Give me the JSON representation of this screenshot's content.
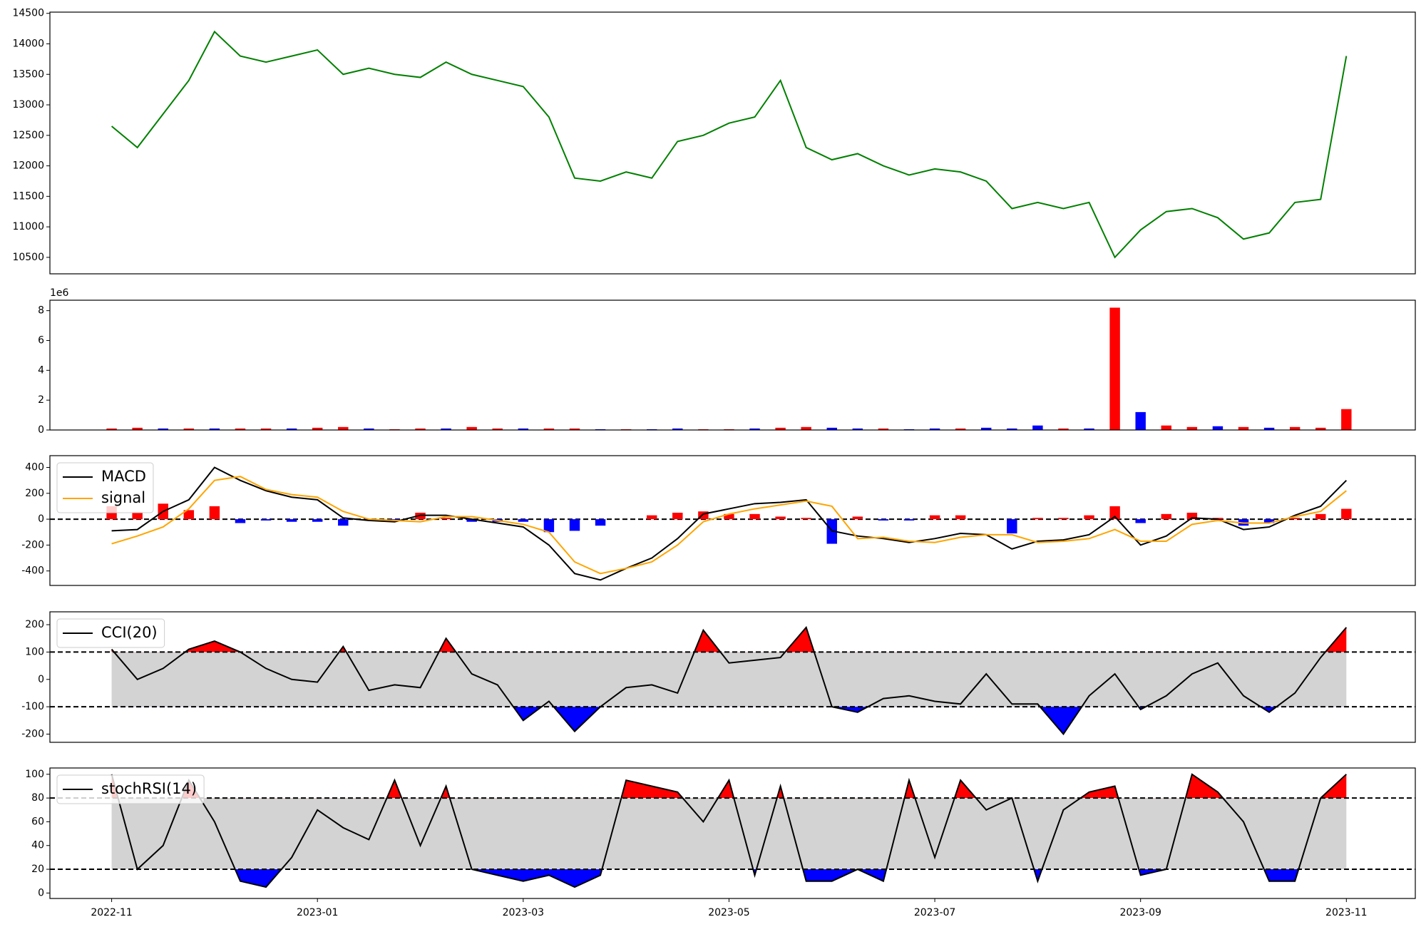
{
  "chart_data": [
    {
      "type": "line",
      "xlim": [
        -0.6,
        12.67
      ],
      "ylim": [
        10230,
        14520
      ],
      "yticks": [
        10500,
        11000,
        11500,
        12000,
        12500,
        13000,
        13500,
        14000,
        14500
      ],
      "x": [
        0,
        0.25,
        0.5,
        0.75,
        1,
        1.25,
        1.5,
        1.75,
        2,
        2.25,
        2.5,
        2.75,
        3,
        3.25,
        3.5,
        3.75,
        4,
        4.25,
        4.5,
        4.75,
        5,
        5.25,
        5.5,
        5.75,
        6,
        6.25,
        6.5,
        6.75,
        7,
        7.25,
        7.5,
        7.75,
        8,
        8.25,
        8.5,
        8.75,
        9,
        9.25,
        9.5,
        9.75,
        10,
        10.25,
        10.5,
        10.75,
        11,
        11.25,
        11.5,
        11.75,
        12
      ],
      "series": [
        {
          "color": "green",
          "values": [
            12650,
            12300,
            12850,
            13400,
            14200,
            13800,
            13700,
            13800,
            13900,
            13500,
            13600,
            13500,
            13450,
            13700,
            13500,
            13400,
            13300,
            12800,
            11800,
            11750,
            11900,
            11800,
            12400,
            12500,
            12700,
            12800,
            13400,
            12300,
            12100,
            12200,
            12000,
            11850,
            11950,
            11900,
            11750,
            11300,
            11400,
            11300,
            11400,
            10500,
            10950,
            11250,
            11300,
            11150,
            10800,
            10900,
            11400,
            11450,
            13800
          ]
        }
      ]
    },
    {
      "type": "bar",
      "xlim": [
        -0.6,
        12.67
      ],
      "ylim": [
        0,
        8.7
      ],
      "yticks": [
        0,
        2,
        4,
        6,
        8
      ],
      "offset_label": "1e6",
      "x": [
        0,
        0.25,
        0.5,
        0.75,
        1,
        1.25,
        1.5,
        1.75,
        2,
        2.25,
        2.5,
        2.75,
        3,
        3.25,
        3.5,
        3.75,
        4,
        4.25,
        4.5,
        4.75,
        5,
        5.25,
        5.5,
        5.75,
        6,
        6.25,
        6.5,
        6.75,
        7,
        7.25,
        7.5,
        7.75,
        8,
        8.25,
        8.5,
        8.75,
        9,
        9.25,
        9.5,
        9.75,
        10,
        10.25,
        10.5,
        10.75,
        11,
        11.25,
        11.5,
        11.75,
        12
      ],
      "values": [
        0.1,
        0.15,
        0.1,
        0.1,
        0.1,
        0.1,
        0.1,
        0.1,
        0.15,
        0.2,
        0.1,
        0.05,
        0.1,
        0.1,
        0.2,
        0.1,
        0.1,
        0.1,
        0.1,
        0.05,
        0.05,
        0.05,
        0.1,
        0.05,
        0.05,
        0.1,
        0.15,
        0.2,
        0.15,
        0.1,
        0.1,
        0.05,
        0.1,
        0.1,
        0.15,
        0.1,
        0.3,
        0.1,
        0.1,
        8.2,
        1.2,
        0.3,
        0.2,
        0.25,
        0.2,
        0.15,
        0.2,
        0.15,
        1.4
      ],
      "colors": [
        "red",
        "red",
        "blue",
        "red",
        "blue",
        "red",
        "red",
        "blue",
        "red",
        "red",
        "blue",
        "red",
        "red",
        "blue",
        "red",
        "red",
        "blue",
        "red",
        "red",
        "blue",
        "red",
        "blue",
        "blue",
        "red",
        "red",
        "blue",
        "red",
        "red",
        "blue",
        "blue",
        "red",
        "blue",
        "blue",
        "red",
        "blue",
        "blue",
        "blue",
        "red",
        "blue",
        "red",
        "blue",
        "red",
        "red",
        "blue",
        "red",
        "blue",
        "red",
        "red",
        "red"
      ]
    },
    {
      "type": "line",
      "xlim": [
        -0.6,
        12.67
      ],
      "ylim": [
        -512,
        491
      ],
      "yticks": [
        -400,
        -200,
        0,
        200,
        400
      ],
      "hlines": [
        0
      ],
      "legend": "upper left",
      "x": [
        0,
        0.25,
        0.5,
        0.75,
        1,
        1.25,
        1.5,
        1.75,
        2,
        2.25,
        2.5,
        2.75,
        3,
        3.25,
        3.5,
        3.75,
        4,
        4.25,
        4.5,
        4.75,
        5,
        5.25,
        5.5,
        5.75,
        6,
        6.25,
        6.5,
        6.75,
        7,
        7.25,
        7.5,
        7.75,
        8,
        8.25,
        8.5,
        8.75,
        9,
        9.25,
        9.5,
        9.75,
        10,
        10.25,
        10.5,
        10.75,
        11,
        11.25,
        11.5,
        11.75,
        12
      ],
      "series": [
        {
          "name": "MACD",
          "color": "black",
          "values": [
            -90,
            -80,
            60,
            150,
            400,
            300,
            220,
            170,
            150,
            10,
            -10,
            -20,
            30,
            30,
            0,
            -30,
            -60,
            -200,
            -420,
            -470,
            -380,
            -300,
            -150,
            40,
            80,
            120,
            130,
            150,
            -90,
            -130,
            -150,
            -180,
            -150,
            -110,
            -120,
            -230,
            -170,
            -160,
            -120,
            20,
            -200,
            -130,
            10,
            0,
            -80,
            -60,
            30,
            100,
            300
          ]
        },
        {
          "name": "signal",
          "color": "orange",
          "values": [
            -190,
            -130,
            -60,
            80,
            300,
            330,
            230,
            190,
            170,
            60,
            0,
            -10,
            -20,
            20,
            20,
            -10,
            -40,
            -100,
            -330,
            -420,
            -380,
            -330,
            -200,
            -20,
            40,
            80,
            110,
            140,
            100,
            -150,
            -140,
            -170,
            -180,
            -140,
            -120,
            -120,
            -180,
            -170,
            -150,
            -80,
            -170,
            -170,
            -40,
            -10,
            -30,
            -30,
            20,
            60,
            220
          ]
        }
      ],
      "bars": {
        "pos_color": "red",
        "neg_color": "blue",
        "values": [
          100,
          50,
          120,
          70,
          100,
          -30,
          -10,
          -20,
          -20,
          -50,
          -10,
          -10,
          50,
          10,
          -20,
          -20,
          -20,
          -100,
          -90,
          -50,
          0,
          30,
          50,
          60,
          40,
          40,
          20,
          10,
          -190,
          20,
          -10,
          -10,
          30,
          30,
          0,
          -110,
          10,
          10,
          30,
          100,
          -30,
          40,
          50,
          10,
          -50,
          -30,
          10,
          40,
          80
        ]
      }
    },
    {
      "type": "line",
      "xlim": [
        -0.6,
        12.67
      ],
      "ylim": [
        -230,
        247
      ],
      "yticks": [
        -200,
        -100,
        0,
        100,
        200
      ],
      "hlines": [
        -100,
        100
      ],
      "legend": "upper left",
      "band": [
        -100,
        100
      ],
      "band_color": "lightgray",
      "above_color": "red",
      "below_color": "blue",
      "x": [
        0,
        0.25,
        0.5,
        0.75,
        1,
        1.25,
        1.5,
        1.75,
        2,
        2.25,
        2.5,
        2.75,
        3,
        3.25,
        3.5,
        3.75,
        4,
        4.25,
        4.5,
        4.75,
        5,
        5.25,
        5.5,
        5.75,
        6,
        6.25,
        6.5,
        6.75,
        7,
        7.25,
        7.5,
        7.75,
        8,
        8.25,
        8.5,
        8.75,
        9,
        9.25,
        9.5,
        9.75,
        10,
        10.25,
        10.5,
        10.75,
        11,
        11.25,
        11.5,
        11.75,
        12
      ],
      "series": [
        {
          "name": "CCI(20)",
          "color": "black",
          "values": [
            110,
            0,
            40,
            110,
            140,
            100,
            40,
            0,
            -10,
            120,
            -40,
            -20,
            -30,
            150,
            20,
            -20,
            -150,
            -80,
            -190,
            -100,
            -30,
            -20,
            -50,
            180,
            60,
            70,
            80,
            190,
            -100,
            -120,
            -70,
            -60,
            -80,
            -90,
            20,
            -90,
            -90,
            -200,
            -60,
            20,
            -110,
            -60,
            20,
            60,
            -60,
            -120,
            -50,
            80,
            190
          ]
        }
      ]
    },
    {
      "type": "line",
      "xlim": [
        -0.6,
        12.67
      ],
      "ylim": [
        -4.6,
        105.3
      ],
      "yticks": [
        0,
        20,
        40,
        60,
        80,
        100
      ],
      "hlines": [
        20,
        80
      ],
      "legend": "upper left",
      "band": [
        20,
        80
      ],
      "band_color": "lightgray",
      "above_color": "red",
      "below_color": "blue",
      "x": [
        0,
        0.25,
        0.5,
        0.75,
        1,
        1.25,
        1.5,
        1.75,
        2,
        2.25,
        2.5,
        2.75,
        3,
        3.25,
        3.5,
        3.75,
        4,
        4.25,
        4.5,
        4.75,
        5,
        5.25,
        5.5,
        5.75,
        6,
        6.25,
        6.5,
        6.75,
        7,
        7.25,
        7.5,
        7.75,
        8,
        8.25,
        8.5,
        8.75,
        9,
        9.25,
        9.5,
        9.75,
        10,
        10.25,
        10.5,
        10.75,
        11,
        11.25,
        11.5,
        11.75,
        12
      ],
      "series": [
        {
          "name": "stochRSI(14)",
          "color": "black",
          "values": [
            100,
            20,
            40,
            95,
            60,
            10,
            5,
            30,
            70,
            55,
            45,
            95,
            40,
            90,
            20,
            15,
            10,
            15,
            5,
            15,
            95,
            90,
            85,
            60,
            95,
            15,
            90,
            10,
            10,
            20,
            10,
            95,
            30,
            95,
            70,
            80,
            10,
            70,
            85,
            90,
            15,
            20,
            100,
            85,
            60,
            10,
            10,
            80,
            100
          ]
        }
      ],
      "xticks": [
        {
          "value": 0,
          "label": "2022-11"
        },
        {
          "value": 2,
          "label": "2023-01"
        },
        {
          "value": 4,
          "label": "2023-03"
        },
        {
          "value": 6,
          "label": "2023-05"
        },
        {
          "value": 8,
          "label": "2023-07"
        },
        {
          "value": 10,
          "label": "2023-09"
        },
        {
          "value": 12,
          "label": "2023-11"
        }
      ]
    }
  ]
}
